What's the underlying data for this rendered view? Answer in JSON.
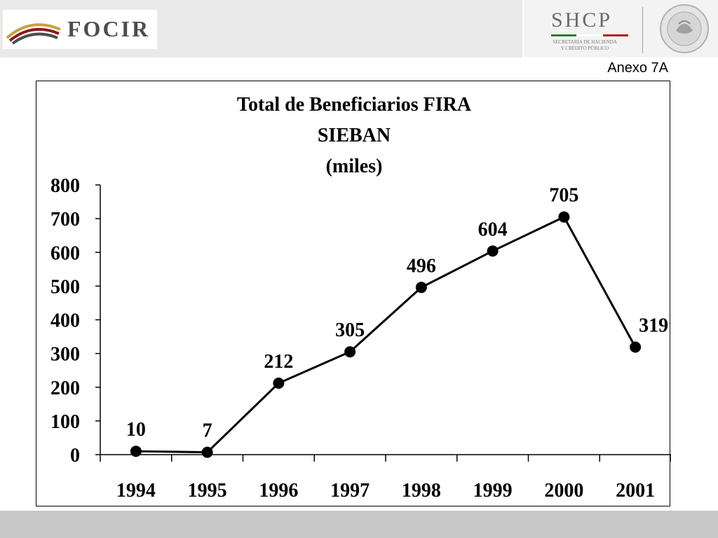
{
  "header": {
    "left_logo_text": "FOCIR",
    "right_logo_text": "SHCP",
    "right_logo_subtitle": [
      "SECRETARÍA DE HACIENDA",
      "Y CRÉDITO PÚBLICO"
    ]
  },
  "annex_label": "Anexo 7A",
  "chart_data": {
    "type": "line",
    "title_lines": [
      "Total de Beneficiarios FIRA",
      "SIEBAN",
      "(miles)"
    ],
    "categories": [
      "1994",
      "1995",
      "1996",
      "1997",
      "1998",
      "1999",
      "2000",
      "2001"
    ],
    "values": [
      10,
      7,
      212,
      305,
      496,
      604,
      705,
      319
    ],
    "ylim": [
      0,
      800
    ],
    "yticks": [
      0,
      100,
      200,
      300,
      400,
      500,
      600,
      700,
      800
    ],
    "data_labels": true,
    "legend": "none",
    "grid": false,
    "colors": {
      "line": "#000000",
      "marker": "#000000"
    }
  }
}
